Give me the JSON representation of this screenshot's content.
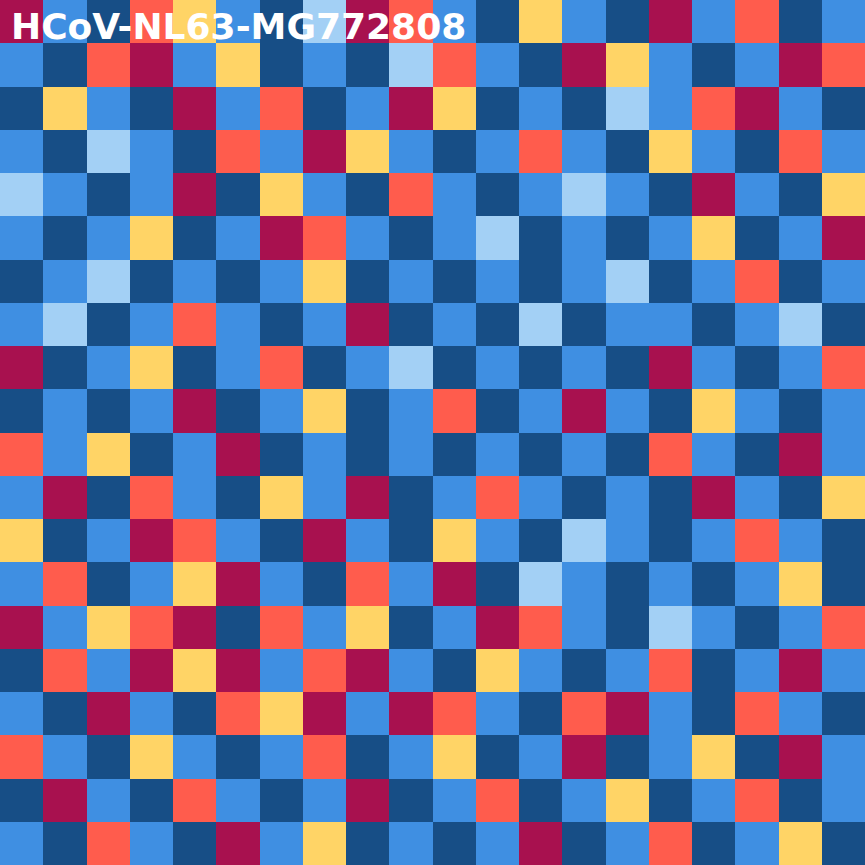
{
  "chart_data": {
    "type": "heatmap",
    "title": "HCoV-NL63-MG772808",
    "tick_labels": false,
    "colors": [
      "#174e86",
      "#3f8fe2",
      "#a3d0f5",
      "#ffd466",
      "#ff5c4d",
      "#a8114f"
    ],
    "cells": [
      [
        5,
        1,
        0,
        4,
        3,
        1,
        0,
        2,
        5,
        4,
        1,
        0,
        3,
        1,
        0,
        5,
        1,
        4,
        0,
        1
      ],
      [
        1,
        0,
        4,
        5,
        1,
        3,
        0,
        1,
        0,
        2,
        4,
        1,
        0,
        5,
        3,
        1,
        0,
        1,
        5,
        4
      ],
      [
        0,
        3,
        1,
        0,
        5,
        1,
        4,
        0,
        1,
        5,
        3,
        0,
        1,
        0,
        2,
        1,
        4,
        5,
        1,
        0
      ],
      [
        1,
        0,
        2,
        1,
        0,
        4,
        1,
        5,
        3,
        1,
        0,
        1,
        4,
        1,
        0,
        3,
        1,
        0,
        4,
        1
      ],
      [
        2,
        1,
        0,
        1,
        5,
        0,
        3,
        1,
        0,
        4,
        1,
        0,
        1,
        2,
        1,
        0,
        5,
        1,
        0,
        3
      ],
      [
        1,
        0,
        1,
        3,
        0,
        1,
        5,
        4,
        1,
        0,
        1,
        2,
        0,
        1,
        0,
        1,
        3,
        0,
        1,
        5
      ],
      [
        0,
        1,
        2,
        0,
        1,
        0,
        1,
        3,
        0,
        1,
        0,
        1,
        0,
        1,
        2,
        0,
        1,
        4,
        0,
        1
      ],
      [
        1,
        2,
        0,
        1,
        4,
        1,
        0,
        1,
        5,
        0,
        1,
        0,
        2,
        0,
        1,
        1,
        0,
        1,
        2,
        0
      ],
      [
        5,
        0,
        1,
        3,
        0,
        1,
        4,
        0,
        1,
        2,
        0,
        1,
        0,
        1,
        0,
        5,
        1,
        0,
        1,
        4
      ],
      [
        0,
        1,
        0,
        1,
        5,
        0,
        1,
        3,
        0,
        1,
        4,
        0,
        1,
        5,
        1,
        0,
        3,
        1,
        0,
        1
      ],
      [
        4,
        1,
        3,
        0,
        1,
        5,
        0,
        1,
        0,
        1,
        0,
        1,
        0,
        1,
        0,
        4,
        1,
        0,
        5,
        1
      ],
      [
        1,
        5,
        0,
        4,
        1,
        0,
        3,
        1,
        5,
        0,
        1,
        4,
        1,
        0,
        1,
        0,
        5,
        1,
        0,
        3
      ],
      [
        3,
        0,
        1,
        5,
        4,
        1,
        0,
        5,
        1,
        0,
        3,
        1,
        0,
        2,
        1,
        0,
        1,
        4,
        1,
        0
      ],
      [
        1,
        4,
        0,
        1,
        3,
        5,
        1,
        0,
        4,
        1,
        5,
        0,
        2,
        1,
        0,
        1,
        0,
        1,
        3,
        0
      ],
      [
        5,
        1,
        3,
        4,
        5,
        0,
        4,
        1,
        3,
        0,
        1,
        5,
        4,
        1,
        0,
        2,
        1,
        0,
        1,
        4
      ],
      [
        0,
        4,
        1,
        5,
        3,
        5,
        1,
        4,
        5,
        1,
        0,
        3,
        1,
        0,
        1,
        4,
        0,
        1,
        5,
        1
      ],
      [
        1,
        0,
        5,
        1,
        0,
        4,
        3,
        5,
        1,
        5,
        4,
        1,
        0,
        4,
        5,
        1,
        0,
        4,
        1,
        0
      ],
      [
        4,
        1,
        0,
        3,
        1,
        0,
        1,
        4,
        0,
        1,
        3,
        0,
        1,
        5,
        0,
        1,
        3,
        0,
        5,
        1
      ],
      [
        0,
        5,
        1,
        0,
        4,
        1,
        0,
        1,
        5,
        0,
        1,
        4,
        0,
        1,
        3,
        0,
        1,
        4,
        0,
        1
      ],
      [
        1,
        0,
        4,
        1,
        0,
        5,
        1,
        3,
        0,
        1,
        0,
        1,
        5,
        0,
        1,
        4,
        0,
        1,
        3,
        0
      ]
    ]
  }
}
